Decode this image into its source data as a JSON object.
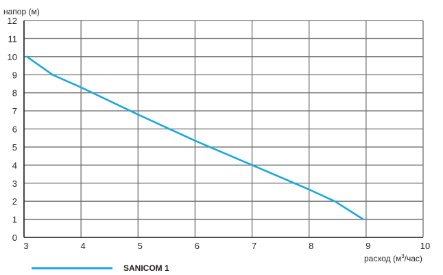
{
  "chart_data": {
    "type": "line",
    "title": "",
    "ylabel": "напор (м)",
    "xlabel_prefix": "расход (м",
    "xlabel_sup": "3",
    "xlabel_suffix": "/час)",
    "xlim": [
      3,
      10
    ],
    "ylim": [
      0,
      12
    ],
    "x_ticks": [
      3,
      4,
      5,
      6,
      7,
      8,
      9,
      10
    ],
    "y_ticks": [
      0,
      1,
      2,
      3,
      4,
      5,
      6,
      7,
      8,
      9,
      10,
      11,
      12
    ],
    "grid": true,
    "legend_position": "bottom-left",
    "series": [
      {
        "name": "SANICOM 1",
        "color": "#1aa7dc",
        "x": [
          3.05,
          3.5,
          4.0,
          5.0,
          6.0,
          7.0,
          8.0,
          8.45,
          8.95
        ],
        "y": [
          10.0,
          9.0,
          8.3,
          6.8,
          5.35,
          4.0,
          2.65,
          2.0,
          1.0
        ]
      }
    ]
  }
}
